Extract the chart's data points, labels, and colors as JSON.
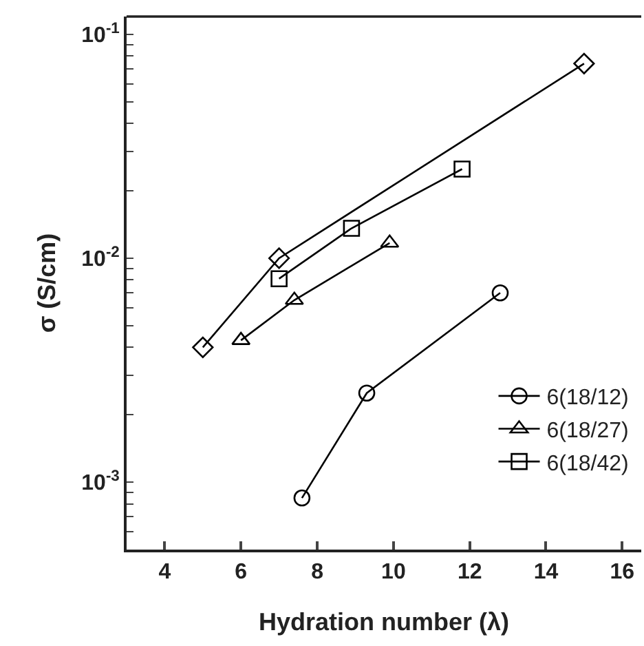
{
  "chart_data": {
    "type": "line",
    "xlabel": "Hydration number (λ)",
    "ylabel": "σ (S/cm)",
    "log": "y",
    "xlim": [
      3,
      16.5
    ],
    "xticks": [
      4,
      6,
      8,
      10,
      12,
      14,
      16
    ],
    "ylim": [
      0.0005,
      0.12
    ],
    "yticks": [
      {
        "value": 0.0006,
        "label": null
      },
      {
        "value": 0.0007,
        "label": null
      },
      {
        "value": 0.0008,
        "label": null
      },
      {
        "value": 0.0009,
        "label": null
      },
      {
        "value": 0.001,
        "label": "10$^{-3}$"
      },
      {
        "value": 0.002,
        "label": null
      },
      {
        "value": 0.003,
        "label": null
      },
      {
        "value": 0.004,
        "label": null
      },
      {
        "value": 0.005,
        "label": null
      },
      {
        "value": 0.006,
        "label": null
      },
      {
        "value": 0.007,
        "label": null
      },
      {
        "value": 0.008,
        "label": null
      },
      {
        "value": 0.009,
        "label": null
      },
      {
        "value": 0.01,
        "label": "10$^{-2}$"
      },
      {
        "value": 0.02,
        "label": null
      },
      {
        "value": 0.03,
        "label": null
      },
      {
        "value": 0.04,
        "label": null
      },
      {
        "value": 0.05,
        "label": null
      },
      {
        "value": 0.06,
        "label": null
      },
      {
        "value": 0.07,
        "label": null
      },
      {
        "value": 0.08,
        "label": null
      },
      {
        "value": 0.09,
        "label": null
      },
      {
        "value": 0.1,
        "label": "10$^{-1}$"
      }
    ],
    "grid": false,
    "legend": "bottom right",
    "line_style": "solid",
    "series": [
      {
        "name": "6(18/12)",
        "color": "#000000",
        "marker": "circle",
        "x": [
          7.6,
          9.3,
          12.8
        ],
        "values": [
          0.00085,
          0.0025,
          0.007
        ]
      },
      {
        "name": "6(18/27)",
        "color": "#000000",
        "marker": "triangle",
        "x": [
          6,
          7.4,
          9.9
        ],
        "values": [
          0.0043,
          0.0065,
          0.0117
        ]
      },
      {
        "name": "6(18/42)",
        "color": "#000000",
        "marker": "square",
        "x": [
          7,
          8.9,
          11.8
        ],
        "values": [
          0.0081,
          0.0136,
          0.025
        ]
      },
      {
        "color": "#000000",
        "marker": "diamond",
        "x": [
          5,
          7,
          15
        ],
        "values": [
          0.004,
          0.01,
          0.074
        ]
      }
    ]
  }
}
